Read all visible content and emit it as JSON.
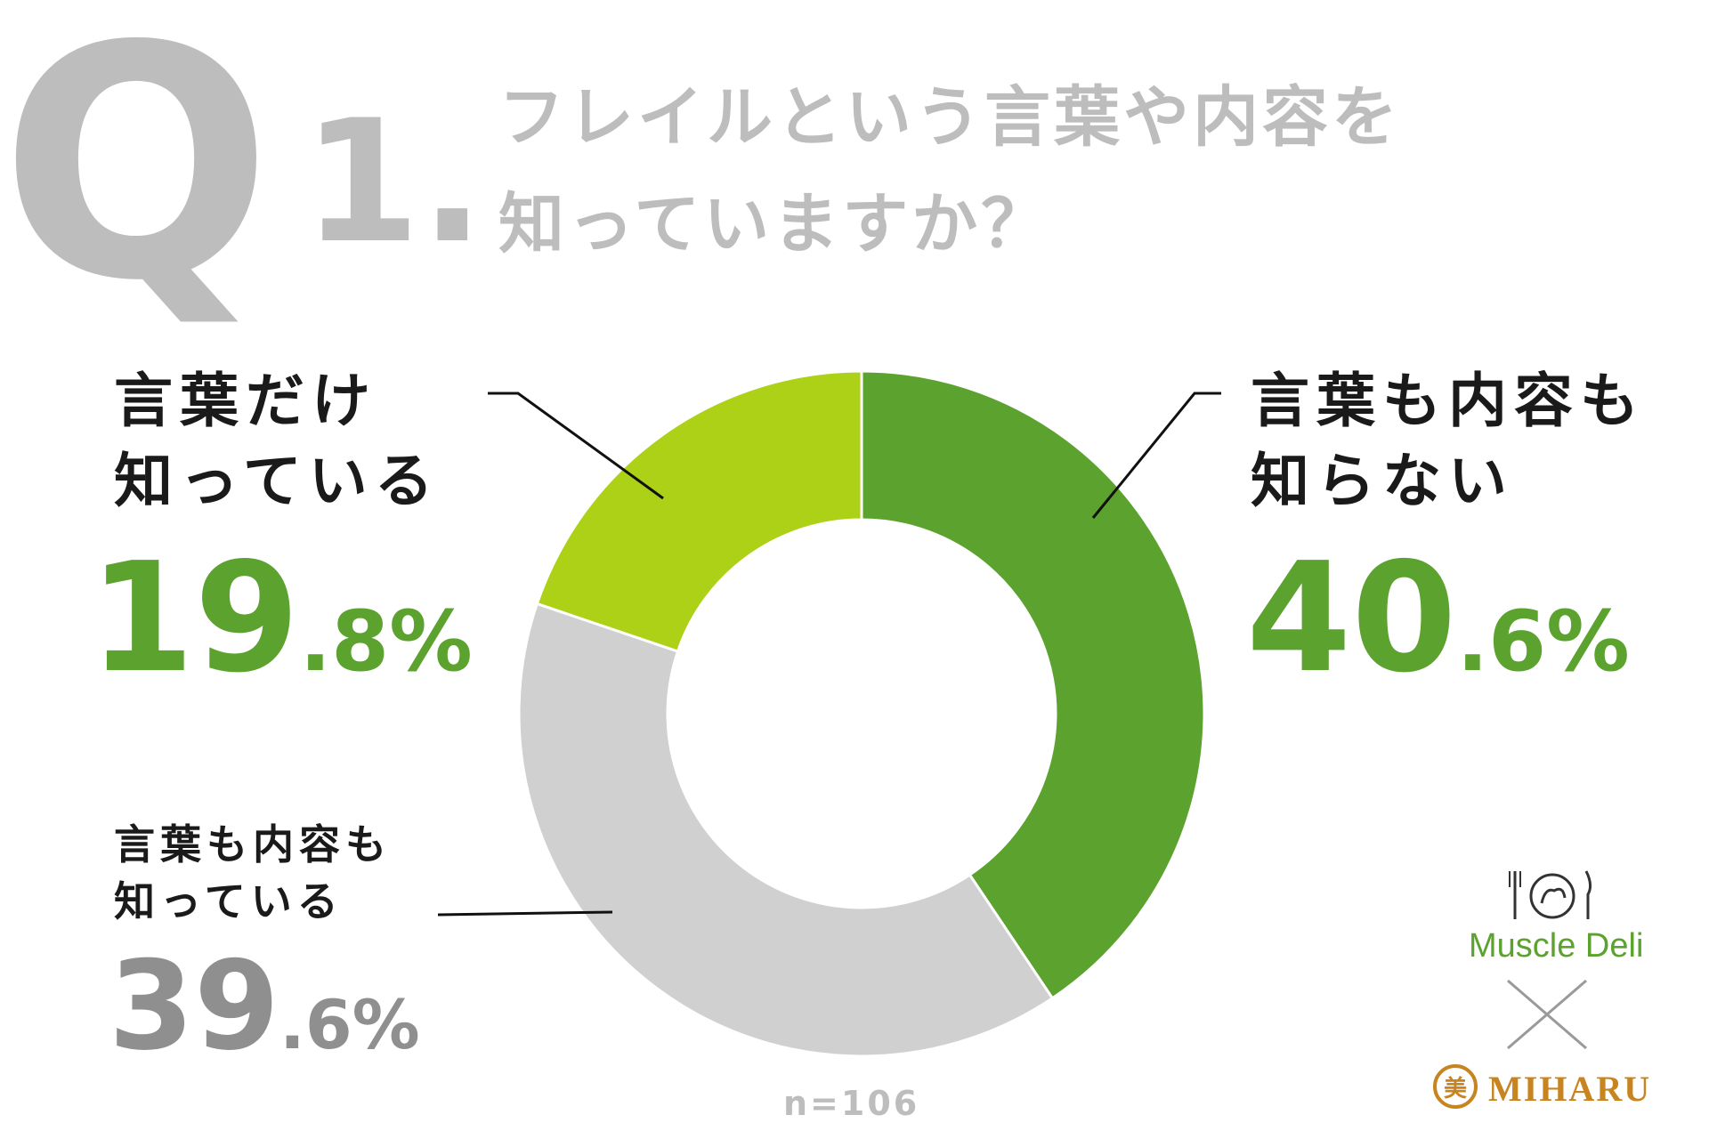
{
  "question": {
    "letter": "Q",
    "number": "1.",
    "line1": "フレイルという言葉や内容を",
    "line2": "知っていますか？"
  },
  "sample_size": "n=106",
  "labels": {
    "word_only": {
      "line1": "言葉だけ",
      "line2": "知っている",
      "int": "19",
      "dec": ".8%"
    },
    "neither": {
      "line1": "言葉も内容も",
      "line2": "知らない",
      "int": "40",
      "dec": ".6%"
    },
    "both": {
      "line1": "言葉も内容も",
      "line2": "知っている",
      "int": "39",
      "dec": ".6%"
    }
  },
  "brands": {
    "first": "Muscle Deli",
    "second": "MIHARU",
    "second_mark": "美"
  },
  "colors": {
    "green": "#5ba22e",
    "lime": "#add116",
    "gray": "#d0d0d0",
    "gray_text": "#8f8f8f"
  },
  "chart_data": {
    "type": "pie",
    "donut": true,
    "categories": [
      "言葉も内容も知らない",
      "言葉も内容も知っている",
      "言葉だけ知っている"
    ],
    "values": [
      40.6,
      39.6,
      19.8
    ],
    "unit": "%",
    "colors": [
      "#5ba22e",
      "#d0d0d0",
      "#add116"
    ]
  }
}
